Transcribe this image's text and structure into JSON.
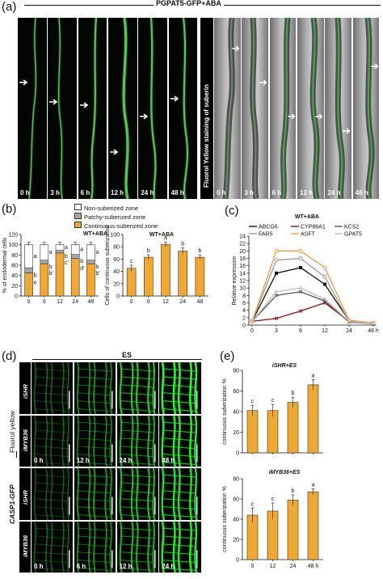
{
  "panel_a": {
    "label": "(a)",
    "title": "PGPAT5-GFP+ABA",
    "side_label": "Fluorol Yellow staining of suberin",
    "time_labels": [
      "0 h",
      "3 h",
      "6 h",
      "12 h",
      "24 h",
      "48 h"
    ]
  },
  "panel_b": {
    "label": "(b)",
    "legend": [
      "Non-suberized zone",
      "Patchy-suberized zone",
      "Continuous-suberized zone"
    ],
    "colors": {
      "non": "#ffffff",
      "patchy": "#a8a8a8",
      "continuous": "#f0a830"
    },
    "chart_data": [
      {
        "type": "bar",
        "title": "WT+ABA",
        "ylabel": "% of endodermal cells",
        "categories": [
          "0",
          "6",
          "12",
          "24",
          "48"
        ],
        "ylim": [
          0,
          120
        ],
        "yticks": [
          0,
          20,
          40,
          60,
          80,
          100,
          120
        ],
        "series": [
          {
            "name": "Continuous-suberized zone",
            "values": [
              45,
              63,
              84,
              73,
              63
            ]
          },
          {
            "name": "Patchy-suberized zone",
            "values": [
              10,
              7,
              5,
              8,
              7
            ]
          },
          {
            "name": "Non-suberized zone",
            "values": [
              45,
              30,
              11,
              19,
              30
            ]
          }
        ],
        "letters_top": [
          "a",
          "a",
          "a",
          "a",
          "a"
        ],
        "letters_mid": [
          "b",
          "b",
          "b",
          "b",
          "b"
        ],
        "letters_low": [
          "e",
          "b'",
          "c'",
          "d'",
          "b'"
        ]
      },
      {
        "type": "bar",
        "title": "WT+ABA",
        "ylabel": "Cells of continuous suberization",
        "categories": [
          "0",
          "6",
          "12",
          "24",
          "48"
        ],
        "values": [
          45,
          63,
          84,
          73,
          63
        ],
        "errors": [
          5,
          4,
          4,
          5,
          4
        ],
        "letters": [
          "c",
          "b",
          "a",
          "b",
          "b"
        ],
        "ylim": [
          0,
          100
        ],
        "yticks": [
          0,
          20,
          40,
          60,
          80,
          100
        ]
      }
    ]
  },
  "panel_c": {
    "label": "(c)",
    "chart_data": {
      "type": "line",
      "title": "WT+ABA",
      "ylabel": "Relative expression",
      "xlabel": "",
      "x": [
        "0",
        "3",
        "6",
        "12",
        "24",
        "48 h"
      ],
      "ylim": [
        0,
        24
      ],
      "yticks": [
        0,
        2,
        4,
        6,
        8,
        10,
        12,
        14,
        16,
        18,
        20,
        22,
        24
      ],
      "series": [
        {
          "name": "ABCG6",
          "color": "#111111",
          "marker": "square",
          "values": [
            1,
            14,
            15.5,
            11,
            1.2,
            0.3
          ]
        },
        {
          "name": "CYP86A1",
          "color": "#8b1010",
          "marker": "cross",
          "values": [
            1,
            1.8,
            3.8,
            6,
            1,
            0.6
          ]
        },
        {
          "name": "KCS2",
          "color": "#555555",
          "marker": "cross",
          "values": [
            1,
            8,
            9,
            6.5,
            0.8,
            0.4
          ]
        },
        {
          "name": "FAR5",
          "color": "#999999",
          "marker": "circle",
          "values": [
            1,
            17.5,
            18,
            13,
            1,
            0.5
          ]
        },
        {
          "name": "ASFT",
          "color": "#f29a3c",
          "marker": "circle",
          "values": [
            1,
            20,
            20,
            15.5,
            1.3,
            0.6
          ]
        },
        {
          "name": "GPAT5",
          "color": "#bbbbbb",
          "marker": "plus",
          "values": [
            1,
            9,
            10,
            7,
            1,
            0.4
          ]
        }
      ]
    }
  },
  "panel_d": {
    "label": "(d)",
    "header": "ES",
    "row_labels": [
      "iSHR",
      "iMYB36",
      "iSHR",
      "iMYB36"
    ],
    "group_labels": [
      "Fluorol yellow",
      "CASP1-GFP"
    ],
    "time_labels_top": [
      "0 h",
      "12 h",
      "24 h",
      "48 h"
    ],
    "time_labels_bottom": [
      "0 h",
      "6 h",
      "12 h",
      "24 h"
    ]
  },
  "panel_e": {
    "label": "(e)",
    "chart_data": [
      {
        "type": "bar",
        "title": "iSHR+ES",
        "ylabel": "continuous suberization %",
        "categories": [
          "0",
          "12",
          "24",
          "48 h"
        ],
        "values": [
          41,
          41,
          49,
          66
        ],
        "errors": [
          5,
          6,
          5,
          5
        ],
        "letters": [
          "c",
          "c",
          "b",
          "a"
        ],
        "ylim": [
          0,
          80
        ],
        "yticks": [
          0,
          20,
          40,
          60,
          80
        ]
      },
      {
        "type": "bar",
        "title": "iMYB36+ES",
        "ylabel": "continuous suberization %",
        "categories": [
          "0",
          "12",
          "24",
          "48 h"
        ],
        "values": [
          44,
          48,
          59,
          67
        ],
        "errors": [
          7,
          8,
          5,
          3
        ],
        "letters": [
          "c",
          "c",
          "b",
          "a"
        ],
        "ylim": [
          0,
          80
        ],
        "yticks": [
          0,
          20,
          40,
          60,
          80
        ]
      }
    ],
    "bar_color": "#f0a830"
  }
}
